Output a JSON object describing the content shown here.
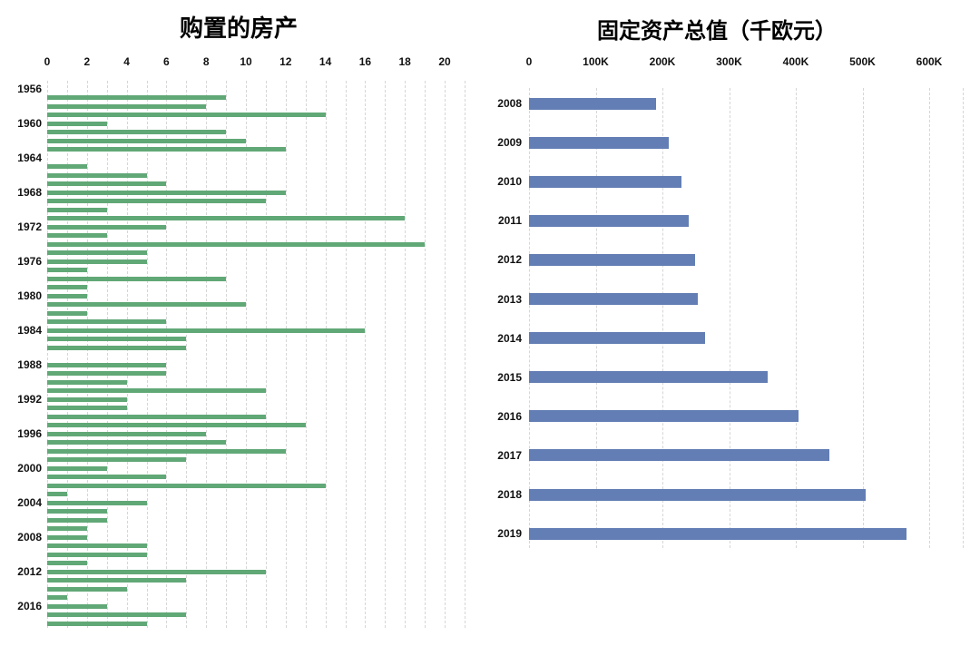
{
  "chart_data": [
    {
      "id": "property-purchases",
      "type": "bar",
      "orientation": "horizontal",
      "title": "购置的房产",
      "bar_color": "#61a877",
      "xlim": [
        0,
        21
      ],
      "grid_on": true,
      "xgrid_values": [
        0,
        1,
        2,
        3,
        4,
        5,
        6,
        7,
        8,
        9,
        10,
        11,
        12,
        13,
        14,
        15,
        16,
        17,
        18,
        19,
        20,
        21
      ],
      "xtick_values": [
        0,
        2,
        4,
        6,
        8,
        10,
        12,
        14,
        16,
        18,
        20
      ],
      "xtick_labels": [
        "0",
        "2",
        "4",
        "6",
        "8",
        "10",
        "12",
        "14",
        "16",
        "18",
        "20"
      ],
      "ytick_labels": [
        "1956",
        "1960",
        "1964",
        "1968",
        "1972",
        "1976",
        "1980",
        "1984",
        "1988",
        "1992",
        "1996",
        "2000",
        "2004",
        "2008",
        "2012",
        "2016"
      ],
      "categories": [
        "1956",
        "1957",
        "1958",
        "1959",
        "1960",
        "1961",
        "1962",
        "1963",
        "1964",
        "1965",
        "1966",
        "1967",
        "1968",
        "1969",
        "1970",
        "1971",
        "1972",
        "1973",
        "1974",
        "1975",
        "1976",
        "1977",
        "1978",
        "1979",
        "1980",
        "1981",
        "1982",
        "1983",
        "1984",
        "1985",
        "1986",
        "1987",
        "1988",
        "1989",
        "1990",
        "1991",
        "1992",
        "1993",
        "1994",
        "1995",
        "1996",
        "1997",
        "1998",
        "1999",
        "2000",
        "2001",
        "2002",
        "2003",
        "2004",
        "2005",
        "2006",
        "2007",
        "2008",
        "2009",
        "2010",
        "2011",
        "2012",
        "2013",
        "2014",
        "2015",
        "2016",
        "2017",
        "2018"
      ],
      "values": [
        0,
        9,
        8,
        14,
        3,
        9,
        10,
        12,
        0,
        2,
        5,
        6,
        12,
        11,
        3,
        18,
        6,
        3,
        19,
        5,
        5,
        2,
        9,
        2,
        2,
        10,
        2,
        6,
        16,
        7,
        7,
        0,
        6,
        6,
        4,
        11,
        4,
        4,
        11,
        13,
        8,
        9,
        12,
        7,
        3,
        6,
        14,
        1,
        5,
        3,
        3,
        2,
        2,
        5,
        5,
        2,
        11,
        7,
        4,
        1,
        3,
        7,
        5
      ]
    },
    {
      "id": "fixed-assets",
      "type": "bar",
      "orientation": "horizontal",
      "title": "固定资产总值（千欧元）",
      "bar_color": "#637eb4",
      "xlim": [
        0,
        650000
      ],
      "grid_on": true,
      "xgrid_values": [
        0,
        100000,
        200000,
        300000,
        400000,
        500000,
        600000,
        650000
      ],
      "xtick_values": [
        0,
        100000,
        200000,
        300000,
        400000,
        500000,
        600000
      ],
      "xtick_labels": [
        "0",
        "100K",
        "200K",
        "300K",
        "400K",
        "500K",
        "600K"
      ],
      "ytick_labels": [
        "2008",
        "2009",
        "2010",
        "2011",
        "2012",
        "2013",
        "2014",
        "2015",
        "2016",
        "2017",
        "2018",
        "2019"
      ],
      "categories": [
        "2008",
        "2009",
        "2010",
        "2011",
        "2012",
        "2013",
        "2014",
        "2015",
        "2016",
        "2017",
        "2018",
        "2019"
      ],
      "values": [
        190000,
        210000,
        228000,
        239000,
        249000,
        253000,
        264000,
        358000,
        404000,
        451000,
        505000,
        566000
      ]
    }
  ]
}
